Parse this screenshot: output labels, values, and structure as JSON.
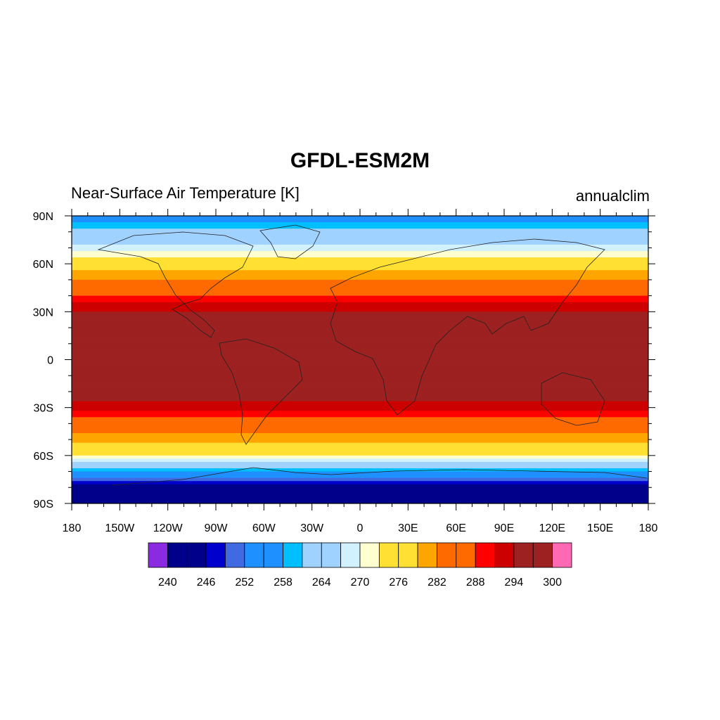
{
  "chart_data": {
    "type": "heatmap",
    "title": "GFDL-ESM2M",
    "subtitle_left": "Near-Surface Air Temperature [K]",
    "subtitle_right": "annualclim",
    "x_ticks": [
      "180",
      "150W",
      "120W",
      "90W",
      "60W",
      "30W",
      "0",
      "30E",
      "60E",
      "90E",
      "120E",
      "150E",
      "180"
    ],
    "y_ticks": [
      "90N",
      "60N",
      "30N",
      "0",
      "30S",
      "60S",
      "90S"
    ],
    "xlim": [
      -180,
      180
    ],
    "ylim": [
      -90,
      90
    ],
    "colorbar": {
      "levels": [
        240,
        243,
        246,
        249,
        252,
        255,
        258,
        261,
        264,
        267,
        270,
        273,
        276,
        279,
        282,
        285,
        288,
        291,
        294,
        297,
        300
      ],
      "tick_labels": [
        "240",
        "246",
        "252",
        "258",
        "264",
        "270",
        "276",
        "282",
        "288",
        "294",
        "300"
      ],
      "colors": [
        "#8a2be2",
        "#00008b",
        "#00008b",
        "#0000cd",
        "#4169e1",
        "#1e90ff",
        "#1e90ff",
        "#00bfff",
        "#a0d2ff",
        "#a0d2ff",
        "#d1f1ff",
        "#ffffd0",
        "#ffe033",
        "#ffe033",
        "#ffa500",
        "#ff6a00",
        "#ff6a00",
        "#ff0000",
        "#cd0000",
        "#9d2121",
        "#9d2121",
        "#ff69b4"
      ]
    },
    "zonal_mean_K": [
      {
        "lat": 90,
        "value": 256
      },
      {
        "lat": 80,
        "value": 262
      },
      {
        "lat": 70,
        "value": 268
      },
      {
        "lat": 60,
        "value": 276
      },
      {
        "lat": 50,
        "value": 282
      },
      {
        "lat": 40,
        "value": 288
      },
      {
        "lat": 30,
        "value": 294
      },
      {
        "lat": 20,
        "value": 297
      },
      {
        "lat": 10,
        "value": 299
      },
      {
        "lat": 0,
        "value": 299
      },
      {
        "lat": -10,
        "value": 298
      },
      {
        "lat": -20,
        "value": 296
      },
      {
        "lat": -30,
        "value": 292
      },
      {
        "lat": -40,
        "value": 286
      },
      {
        "lat": -50,
        "value": 280
      },
      {
        "lat": -60,
        "value": 273
      },
      {
        "lat": -70,
        "value": 258
      },
      {
        "lat": -80,
        "value": 242
      },
      {
        "lat": -90,
        "value": 240
      }
    ],
    "grid": false
  }
}
